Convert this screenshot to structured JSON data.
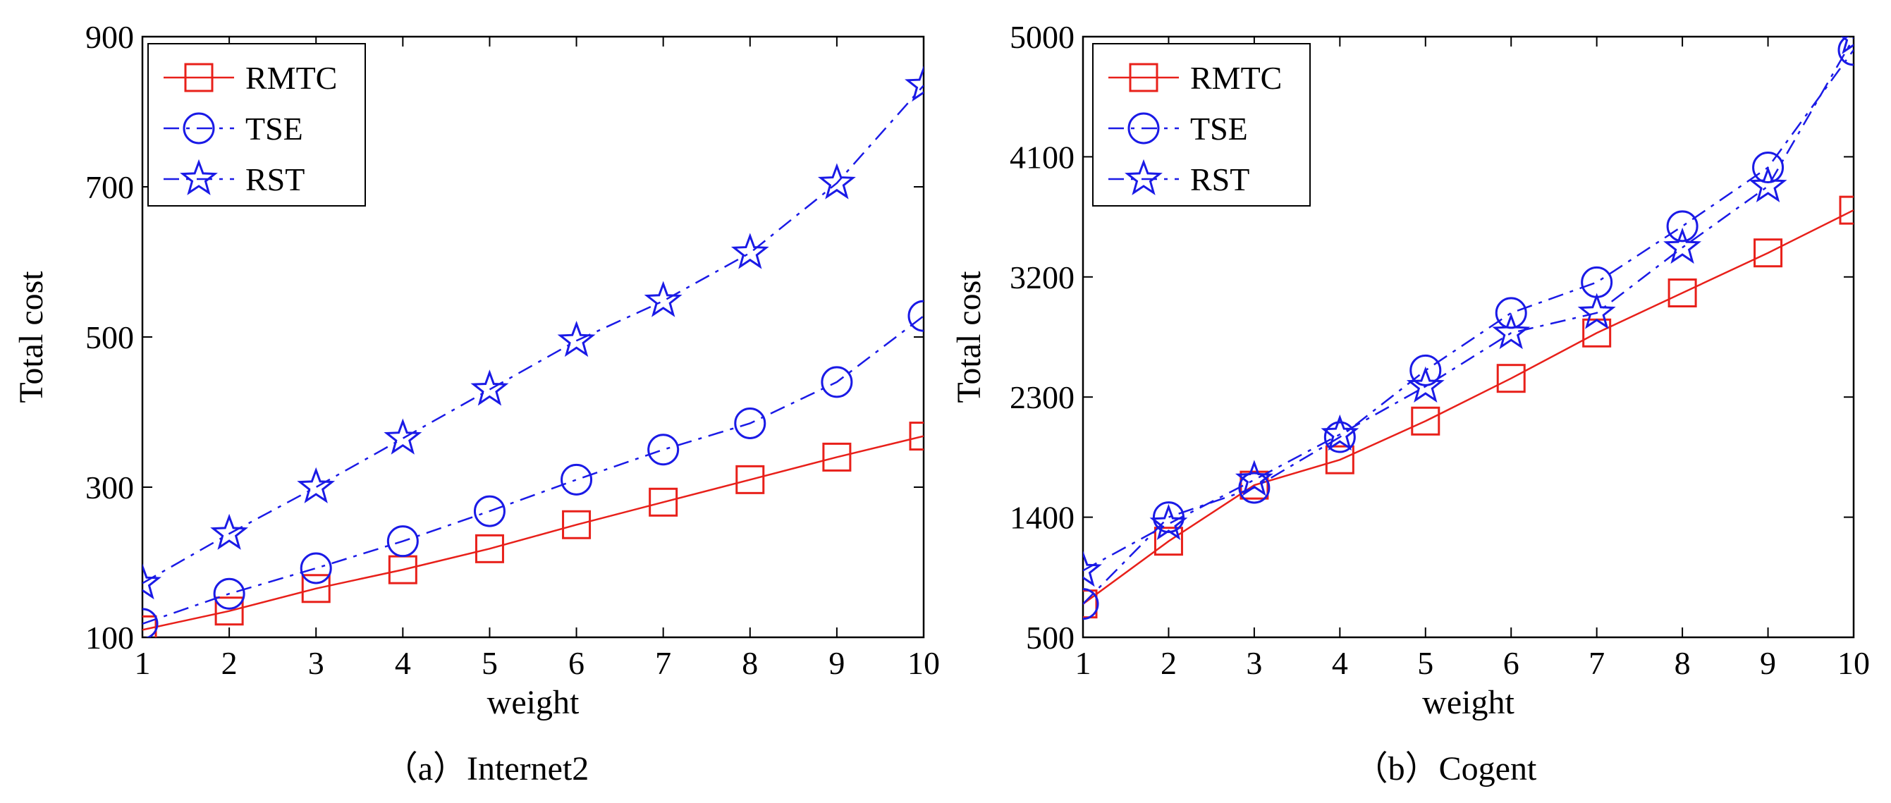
{
  "chart_data": [
    {
      "type": "line",
      "caption": "（a）Internet2",
      "xlabel": "weight",
      "ylabel": "Total cost",
      "xlim": [
        1,
        10
      ],
      "ylim": [
        100,
        900
      ],
      "xticks": [
        1,
        2,
        3,
        4,
        5,
        6,
        7,
        8,
        9,
        10
      ],
      "yticks": [
        100,
        300,
        500,
        700,
        900
      ],
      "legend_position": "top-left",
      "series": [
        {
          "name": "RMTC",
          "color": "#e8201a",
          "marker": "square",
          "dash": "solid",
          "x": [
            1,
            2,
            3,
            4,
            5,
            6,
            7,
            8,
            9,
            10
          ],
          "y": [
            110,
            135,
            165,
            190,
            218,
            250,
            280,
            310,
            340,
            368
          ]
        },
        {
          "name": "TSE",
          "color": "#1a1ae6",
          "marker": "circle",
          "dash": "dashdot",
          "x": [
            1,
            2,
            3,
            4,
            5,
            6,
            7,
            8,
            9,
            10
          ],
          "y": [
            118,
            158,
            192,
            228,
            268,
            310,
            350,
            385,
            440,
            528
          ]
        },
        {
          "name": "RST",
          "color": "#1a1ae6",
          "marker": "star",
          "dash": "dashdot",
          "x": [
            1,
            2,
            3,
            4,
            5,
            6,
            7,
            8,
            9,
            10
          ],
          "y": [
            172,
            238,
            300,
            365,
            430,
            495,
            548,
            612,
            705,
            835
          ]
        }
      ]
    },
    {
      "type": "line",
      "caption": "（b）Cogent",
      "xlabel": "weight",
      "ylabel": "Total cost",
      "xlim": [
        1,
        10
      ],
      "ylim": [
        500,
        5000
      ],
      "xticks": [
        1,
        2,
        3,
        4,
        5,
        6,
        7,
        8,
        9,
        10
      ],
      "yticks": [
        500,
        1400,
        2300,
        3200,
        4100,
        5000
      ],
      "legend_position": "top-left",
      "series": [
        {
          "name": "RMTC",
          "color": "#e8201a",
          "marker": "square",
          "dash": "solid",
          "x": [
            1,
            2,
            3,
            4,
            5,
            6,
            7,
            8,
            9,
            10
          ],
          "y": [
            750,
            1220,
            1640,
            1830,
            2120,
            2440,
            2780,
            3080,
            3380,
            3700
          ]
        },
        {
          "name": "TSE",
          "color": "#1a1ae6",
          "marker": "circle",
          "dash": "dashdot",
          "x": [
            1,
            2,
            3,
            4,
            5,
            6,
            7,
            8,
            9,
            10
          ],
          "y": [
            750,
            1400,
            1620,
            2000,
            2500,
            2930,
            3160,
            3580,
            4020,
            4900
          ]
        },
        {
          "name": "RST",
          "color": "#1a1ae6",
          "marker": "star",
          "dash": "dashdot",
          "x": [
            1,
            2,
            3,
            4,
            5,
            6,
            7,
            8,
            9,
            10
          ],
          "y": [
            1000,
            1350,
            1680,
            2020,
            2380,
            2780,
            2930,
            3420,
            3880,
            4990
          ]
        }
      ]
    }
  ]
}
